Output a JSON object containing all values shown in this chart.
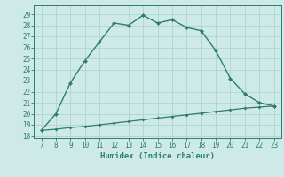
{
  "xlabel": "Humidex (Indice chaleur)",
  "x": [
    7,
    8,
    9,
    10,
    11,
    12,
    13,
    14,
    15,
    16,
    17,
    18,
    19,
    20,
    21,
    22,
    23
  ],
  "y_humidex": [
    18.5,
    20.0,
    22.8,
    24.8,
    26.5,
    28.2,
    28.0,
    28.9,
    28.2,
    28.5,
    27.8,
    27.5,
    25.7,
    23.2,
    21.8,
    21.0,
    20.7
  ],
  "y_baseline": [
    18.5,
    18.6,
    18.75,
    18.85,
    19.0,
    19.15,
    19.3,
    19.45,
    19.6,
    19.75,
    19.9,
    20.05,
    20.2,
    20.35,
    20.5,
    20.6,
    20.7
  ],
  "line_color": "#2e7d6e",
  "bg_color": "#ceeae6",
  "grid_color": "#aed4d0",
  "xlim": [
    6.5,
    23.5
  ],
  "ylim": [
    17.8,
    29.8
  ],
  "yticks": [
    18,
    19,
    20,
    21,
    22,
    23,
    24,
    25,
    26,
    27,
    28,
    29
  ],
  "xticks": [
    7,
    8,
    9,
    10,
    11,
    12,
    13,
    14,
    15,
    16,
    17,
    18,
    19,
    20,
    21,
    22,
    23
  ],
  "tick_fontsize": 5.5,
  "xlabel_fontsize": 6.5
}
